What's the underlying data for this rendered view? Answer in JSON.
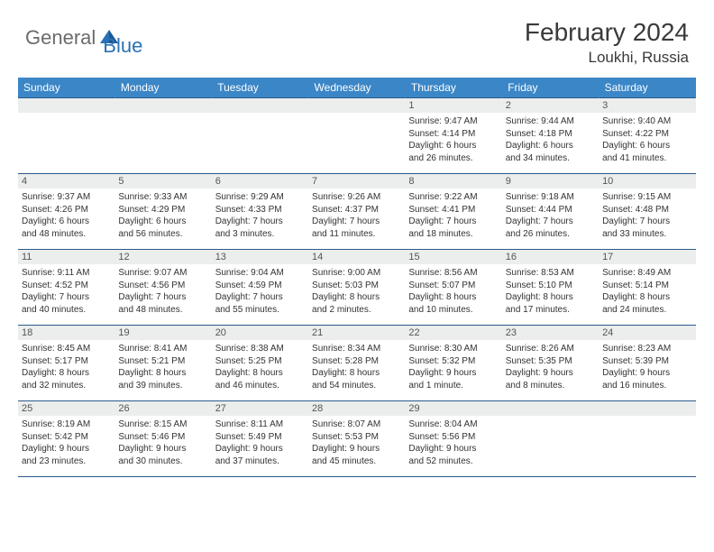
{
  "logo": {
    "general": "General",
    "blue": "Blue"
  },
  "title": "February 2024",
  "location": "Loukhi, Russia",
  "colors": {
    "header_bg": "#3b86c7",
    "header_text": "#ffffff",
    "daynum_bg": "#eceded",
    "border": "#2a5a8a",
    "logo_gray": "#6b6b6b",
    "logo_blue": "#2a72b5"
  },
  "day_headers": [
    "Sunday",
    "Monday",
    "Tuesday",
    "Wednesday",
    "Thursday",
    "Friday",
    "Saturday"
  ],
  "weeks": [
    [
      null,
      null,
      null,
      null,
      {
        "num": "1",
        "sunrise": "Sunrise: 9:47 AM",
        "sunset": "Sunset: 4:14 PM",
        "daylight1": "Daylight: 6 hours",
        "daylight2": "and 26 minutes."
      },
      {
        "num": "2",
        "sunrise": "Sunrise: 9:44 AM",
        "sunset": "Sunset: 4:18 PM",
        "daylight1": "Daylight: 6 hours",
        "daylight2": "and 34 minutes."
      },
      {
        "num": "3",
        "sunrise": "Sunrise: 9:40 AM",
        "sunset": "Sunset: 4:22 PM",
        "daylight1": "Daylight: 6 hours",
        "daylight2": "and 41 minutes."
      }
    ],
    [
      {
        "num": "4",
        "sunrise": "Sunrise: 9:37 AM",
        "sunset": "Sunset: 4:26 PM",
        "daylight1": "Daylight: 6 hours",
        "daylight2": "and 48 minutes."
      },
      {
        "num": "5",
        "sunrise": "Sunrise: 9:33 AM",
        "sunset": "Sunset: 4:29 PM",
        "daylight1": "Daylight: 6 hours",
        "daylight2": "and 56 minutes."
      },
      {
        "num": "6",
        "sunrise": "Sunrise: 9:29 AM",
        "sunset": "Sunset: 4:33 PM",
        "daylight1": "Daylight: 7 hours",
        "daylight2": "and 3 minutes."
      },
      {
        "num": "7",
        "sunrise": "Sunrise: 9:26 AM",
        "sunset": "Sunset: 4:37 PM",
        "daylight1": "Daylight: 7 hours",
        "daylight2": "and 11 minutes."
      },
      {
        "num": "8",
        "sunrise": "Sunrise: 9:22 AM",
        "sunset": "Sunset: 4:41 PM",
        "daylight1": "Daylight: 7 hours",
        "daylight2": "and 18 minutes."
      },
      {
        "num": "9",
        "sunrise": "Sunrise: 9:18 AM",
        "sunset": "Sunset: 4:44 PM",
        "daylight1": "Daylight: 7 hours",
        "daylight2": "and 26 minutes."
      },
      {
        "num": "10",
        "sunrise": "Sunrise: 9:15 AM",
        "sunset": "Sunset: 4:48 PM",
        "daylight1": "Daylight: 7 hours",
        "daylight2": "and 33 minutes."
      }
    ],
    [
      {
        "num": "11",
        "sunrise": "Sunrise: 9:11 AM",
        "sunset": "Sunset: 4:52 PM",
        "daylight1": "Daylight: 7 hours",
        "daylight2": "and 40 minutes."
      },
      {
        "num": "12",
        "sunrise": "Sunrise: 9:07 AM",
        "sunset": "Sunset: 4:56 PM",
        "daylight1": "Daylight: 7 hours",
        "daylight2": "and 48 minutes."
      },
      {
        "num": "13",
        "sunrise": "Sunrise: 9:04 AM",
        "sunset": "Sunset: 4:59 PM",
        "daylight1": "Daylight: 7 hours",
        "daylight2": "and 55 minutes."
      },
      {
        "num": "14",
        "sunrise": "Sunrise: 9:00 AM",
        "sunset": "Sunset: 5:03 PM",
        "daylight1": "Daylight: 8 hours",
        "daylight2": "and 2 minutes."
      },
      {
        "num": "15",
        "sunrise": "Sunrise: 8:56 AM",
        "sunset": "Sunset: 5:07 PM",
        "daylight1": "Daylight: 8 hours",
        "daylight2": "and 10 minutes."
      },
      {
        "num": "16",
        "sunrise": "Sunrise: 8:53 AM",
        "sunset": "Sunset: 5:10 PM",
        "daylight1": "Daylight: 8 hours",
        "daylight2": "and 17 minutes."
      },
      {
        "num": "17",
        "sunrise": "Sunrise: 8:49 AM",
        "sunset": "Sunset: 5:14 PM",
        "daylight1": "Daylight: 8 hours",
        "daylight2": "and 24 minutes."
      }
    ],
    [
      {
        "num": "18",
        "sunrise": "Sunrise: 8:45 AM",
        "sunset": "Sunset: 5:17 PM",
        "daylight1": "Daylight: 8 hours",
        "daylight2": "and 32 minutes."
      },
      {
        "num": "19",
        "sunrise": "Sunrise: 8:41 AM",
        "sunset": "Sunset: 5:21 PM",
        "daylight1": "Daylight: 8 hours",
        "daylight2": "and 39 minutes."
      },
      {
        "num": "20",
        "sunrise": "Sunrise: 8:38 AM",
        "sunset": "Sunset: 5:25 PM",
        "daylight1": "Daylight: 8 hours",
        "daylight2": "and 46 minutes."
      },
      {
        "num": "21",
        "sunrise": "Sunrise: 8:34 AM",
        "sunset": "Sunset: 5:28 PM",
        "daylight1": "Daylight: 8 hours",
        "daylight2": "and 54 minutes."
      },
      {
        "num": "22",
        "sunrise": "Sunrise: 8:30 AM",
        "sunset": "Sunset: 5:32 PM",
        "daylight1": "Daylight: 9 hours",
        "daylight2": "and 1 minute."
      },
      {
        "num": "23",
        "sunrise": "Sunrise: 8:26 AM",
        "sunset": "Sunset: 5:35 PM",
        "daylight1": "Daylight: 9 hours",
        "daylight2": "and 8 minutes."
      },
      {
        "num": "24",
        "sunrise": "Sunrise: 8:23 AM",
        "sunset": "Sunset: 5:39 PM",
        "daylight1": "Daylight: 9 hours",
        "daylight2": "and 16 minutes."
      }
    ],
    [
      {
        "num": "25",
        "sunrise": "Sunrise: 8:19 AM",
        "sunset": "Sunset: 5:42 PM",
        "daylight1": "Daylight: 9 hours",
        "daylight2": "and 23 minutes."
      },
      {
        "num": "26",
        "sunrise": "Sunrise: 8:15 AM",
        "sunset": "Sunset: 5:46 PM",
        "daylight1": "Daylight: 9 hours",
        "daylight2": "and 30 minutes."
      },
      {
        "num": "27",
        "sunrise": "Sunrise: 8:11 AM",
        "sunset": "Sunset: 5:49 PM",
        "daylight1": "Daylight: 9 hours",
        "daylight2": "and 37 minutes."
      },
      {
        "num": "28",
        "sunrise": "Sunrise: 8:07 AM",
        "sunset": "Sunset: 5:53 PM",
        "daylight1": "Daylight: 9 hours",
        "daylight2": "and 45 minutes."
      },
      {
        "num": "29",
        "sunrise": "Sunrise: 8:04 AM",
        "sunset": "Sunset: 5:56 PM",
        "daylight1": "Daylight: 9 hours",
        "daylight2": "and 52 minutes."
      },
      null,
      null
    ]
  ]
}
